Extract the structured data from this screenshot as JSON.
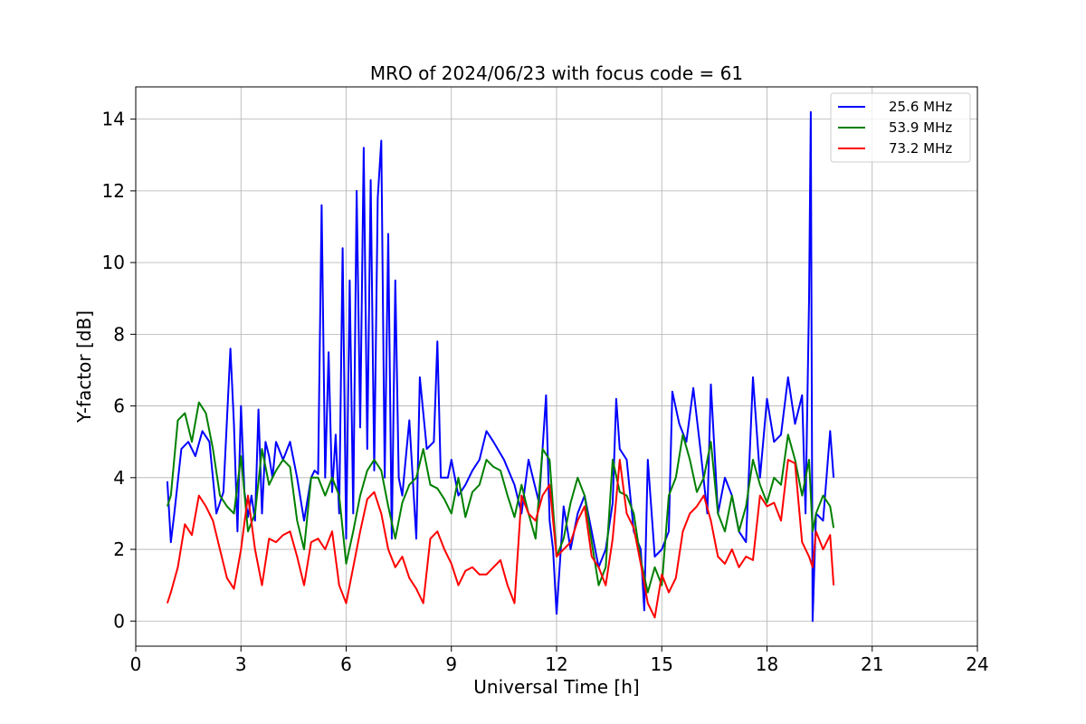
{
  "chart_data": {
    "type": "line",
    "title": "MRO of 2024/06/23 with focus code = 61",
    "xlabel": "Universal Time [h]",
    "ylabel": "Y-factor [dB]",
    "xlim": [
      0,
      24
    ],
    "ylim": [
      -0.7,
      14.9
    ],
    "xticks": [
      0,
      3,
      6,
      9,
      12,
      15,
      18,
      21,
      24
    ],
    "yticks": [
      0,
      2,
      4,
      6,
      8,
      10,
      12,
      14
    ],
    "grid": true,
    "legend_position": "top-right",
    "series": [
      {
        "name": "25.6 MHz",
        "color": "#0000ff",
        "x": [
          0.9,
          1.0,
          1.1,
          1.3,
          1.5,
          1.7,
          1.9,
          2.1,
          2.3,
          2.5,
          2.7,
          2.8,
          2.9,
          3.0,
          3.1,
          3.2,
          3.3,
          3.4,
          3.5,
          3.6,
          3.7,
          3.8,
          3.9,
          4.0,
          4.2,
          4.4,
          4.6,
          4.8,
          5.0,
          5.1,
          5.2,
          5.3,
          5.4,
          5.5,
          5.6,
          5.7,
          5.8,
          5.9,
          6.0,
          6.1,
          6.2,
          6.3,
          6.4,
          6.5,
          6.6,
          6.7,
          6.8,
          6.9,
          7.0,
          7.1,
          7.2,
          7.3,
          7.4,
          7.5,
          7.6,
          7.8,
          8.0,
          8.1,
          8.3,
          8.5,
          8.6,
          8.7,
          8.9,
          9.0,
          9.2,
          9.4,
          9.6,
          9.8,
          10.0,
          10.2,
          10.5,
          10.8,
          11.0,
          11.2,
          11.5,
          11.7,
          11.8,
          11.9,
          12.0,
          12.2,
          12.4,
          12.6,
          12.8,
          13.0,
          13.2,
          13.4,
          13.6,
          13.7,
          13.8,
          14.0,
          14.2,
          14.4,
          14.5,
          14.6,
          14.8,
          15.0,
          15.2,
          15.3,
          15.5,
          15.7,
          15.9,
          16.1,
          16.3,
          16.4,
          16.6,
          16.8,
          17.0,
          17.2,
          17.4,
          17.6,
          17.8,
          18.0,
          18.2,
          18.4,
          18.6,
          18.8,
          19.0,
          19.1,
          19.2,
          19.25,
          19.3,
          19.4,
          19.6,
          19.8,
          19.9
        ],
        "y": [
          3.9,
          2.2,
          3.0,
          4.8,
          5.0,
          4.6,
          5.3,
          5.0,
          3.0,
          3.6,
          7.6,
          5.5,
          2.5,
          6.0,
          3.6,
          2.9,
          3.5,
          2.8,
          5.9,
          3.0,
          5.0,
          4.6,
          4.0,
          5.0,
          4.5,
          5.0,
          4.0,
          2.8,
          4.0,
          4.2,
          4.1,
          11.6,
          4.0,
          7.5,
          3.6,
          5.2,
          3.0,
          10.4,
          2.3,
          9.5,
          3.0,
          12.0,
          5.4,
          13.2,
          4.8,
          12.3,
          4.2,
          11.8,
          13.4,
          4.0,
          10.8,
          2.3,
          9.5,
          4.0,
          3.5,
          5.6,
          2.3,
          6.8,
          4.8,
          5.0,
          7.8,
          4.0,
          4.0,
          4.5,
          3.5,
          3.8,
          4.2,
          4.5,
          5.3,
          5.0,
          4.5,
          3.8,
          3.0,
          4.5,
          3.3,
          6.3,
          2.8,
          2.0,
          0.2,
          3.2,
          2.0,
          3.0,
          3.5,
          2.5,
          1.5,
          2.0,
          3.3,
          6.2,
          4.8,
          4.5,
          2.5,
          2.0,
          0.3,
          4.5,
          1.8,
          2.0,
          2.5,
          6.4,
          5.5,
          5.0,
          6.5,
          4.8,
          3.0,
          6.6,
          3.0,
          4.0,
          3.5,
          2.5,
          2.2,
          6.8,
          4.0,
          6.2,
          5.0,
          5.2,
          6.8,
          5.5,
          6.3,
          3.0,
          9.0,
          14.2,
          0.0,
          3.0,
          2.8,
          5.3,
          4.0
        ]
      },
      {
        "name": "53.9 MHz",
        "color": "#008000",
        "x": [
          0.9,
          1.0,
          1.2,
          1.4,
          1.6,
          1.8,
          2.0,
          2.2,
          2.4,
          2.6,
          2.8,
          3.0,
          3.2,
          3.4,
          3.6,
          3.8,
          4.0,
          4.2,
          4.4,
          4.6,
          4.8,
          5.0,
          5.2,
          5.4,
          5.6,
          5.8,
          6.0,
          6.2,
          6.4,
          6.6,
          6.8,
          7.0,
          7.2,
          7.4,
          7.6,
          7.8,
          8.0,
          8.2,
          8.4,
          8.6,
          8.8,
          9.0,
          9.2,
          9.4,
          9.6,
          9.8,
          10.0,
          10.2,
          10.4,
          10.6,
          10.8,
          11.0,
          11.2,
          11.4,
          11.6,
          11.8,
          12.0,
          12.2,
          12.4,
          12.6,
          12.8,
          13.0,
          13.2,
          13.4,
          13.6,
          13.8,
          14.0,
          14.2,
          14.4,
          14.6,
          14.8,
          15.0,
          15.2,
          15.4,
          15.6,
          15.8,
          16.0,
          16.2,
          16.4,
          16.6,
          16.8,
          17.0,
          17.2,
          17.4,
          17.6,
          17.8,
          18.0,
          18.2,
          18.4,
          18.6,
          18.8,
          19.0,
          19.2,
          19.3,
          19.4,
          19.6,
          19.8,
          19.9
        ],
        "y": [
          3.2,
          3.5,
          5.6,
          5.8,
          5.0,
          6.1,
          5.8,
          4.8,
          3.5,
          3.2,
          3.0,
          4.6,
          2.5,
          3.0,
          4.8,
          3.8,
          4.2,
          4.5,
          4.3,
          2.8,
          2.0,
          4.0,
          4.0,
          3.5,
          4.0,
          3.5,
          1.6,
          2.5,
          3.5,
          4.2,
          4.5,
          4.2,
          3.2,
          2.3,
          3.3,
          3.8,
          4.0,
          4.8,
          3.8,
          3.7,
          3.4,
          3.0,
          4.0,
          2.9,
          3.6,
          3.8,
          4.5,
          4.3,
          4.2,
          3.5,
          2.9,
          3.8,
          3.0,
          2.3,
          4.8,
          4.5,
          1.8,
          2.3,
          3.3,
          4.0,
          3.5,
          2.2,
          1.0,
          1.5,
          4.5,
          3.6,
          3.5,
          3.0,
          1.7,
          0.8,
          1.5,
          1.0,
          3.5,
          4.0,
          5.2,
          4.5,
          3.6,
          4.0,
          5.0,
          3.0,
          2.5,
          3.5,
          2.5,
          3.2,
          4.5,
          3.8,
          3.3,
          4.0,
          3.8,
          5.2,
          4.5,
          3.5,
          4.5,
          2.5,
          3.0,
          3.5,
          3.2,
          2.6
        ]
      },
      {
        "name": "73.2 MHz",
        "color": "#ff0000",
        "x": [
          0.9,
          1.0,
          1.2,
          1.4,
          1.6,
          1.8,
          2.0,
          2.2,
          2.4,
          2.6,
          2.8,
          3.0,
          3.2,
          3.4,
          3.6,
          3.8,
          4.0,
          4.2,
          4.4,
          4.6,
          4.8,
          5.0,
          5.2,
          5.4,
          5.6,
          5.8,
          6.0,
          6.2,
          6.4,
          6.6,
          6.8,
          7.0,
          7.2,
          7.4,
          7.6,
          7.8,
          8.0,
          8.2,
          8.4,
          8.6,
          8.8,
          9.0,
          9.2,
          9.4,
          9.6,
          9.8,
          10.0,
          10.2,
          10.4,
          10.6,
          10.8,
          11.0,
          11.2,
          11.4,
          11.6,
          11.8,
          12.0,
          12.2,
          12.4,
          12.6,
          12.8,
          13.0,
          13.2,
          13.4,
          13.6,
          13.8,
          14.0,
          14.2,
          14.4,
          14.6,
          14.8,
          15.0,
          15.2,
          15.4,
          15.6,
          15.8,
          16.0,
          16.2,
          16.4,
          16.6,
          16.8,
          17.0,
          17.2,
          17.4,
          17.6,
          17.8,
          18.0,
          18.2,
          18.4,
          18.6,
          18.8,
          19.0,
          19.2,
          19.3,
          19.4,
          19.6,
          19.8,
          19.9
        ],
        "y": [
          0.5,
          0.8,
          1.5,
          2.7,
          2.4,
          3.5,
          3.2,
          2.8,
          2.0,
          1.2,
          0.9,
          2.0,
          3.5,
          2.0,
          1.0,
          2.3,
          2.2,
          2.4,
          2.5,
          1.8,
          1.0,
          2.2,
          2.3,
          2.0,
          2.5,
          1.0,
          0.5,
          1.5,
          2.5,
          3.4,
          3.6,
          3.0,
          2.0,
          1.5,
          1.8,
          1.2,
          0.9,
          0.5,
          2.3,
          2.5,
          2.0,
          1.6,
          1.0,
          1.4,
          1.5,
          1.3,
          1.3,
          1.5,
          1.7,
          1.0,
          0.5,
          3.5,
          3.0,
          2.8,
          3.5,
          3.8,
          1.8,
          2.0,
          2.2,
          2.8,
          3.2,
          1.8,
          1.5,
          1.0,
          2.3,
          4.5,
          3.0,
          2.6,
          1.6,
          0.5,
          0.1,
          1.3,
          0.8,
          1.2,
          2.5,
          3.0,
          3.2,
          3.5,
          2.8,
          1.8,
          1.6,
          2.0,
          1.5,
          1.8,
          1.7,
          3.5,
          3.2,
          3.3,
          2.8,
          4.5,
          4.4,
          2.2,
          1.8,
          1.5,
          2.5,
          2.0,
          2.4,
          1.0
        ]
      }
    ]
  }
}
